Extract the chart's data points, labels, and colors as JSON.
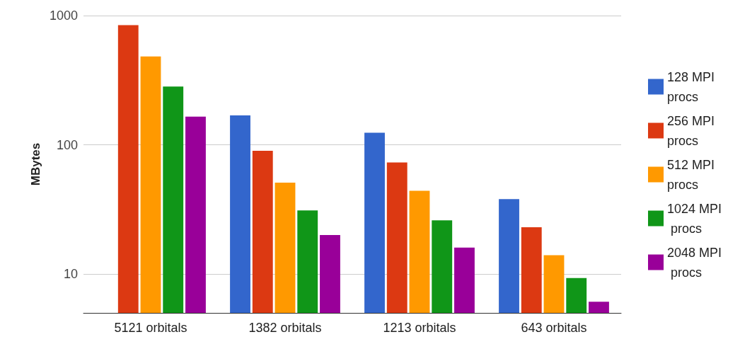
{
  "chart_data": {
    "type": "bar",
    "ylabel": "MBytes",
    "categories": [
      "5121 orbitals",
      "1382 orbitals",
      "1213 orbitals",
      "643 orbitals"
    ],
    "series": [
      {
        "name": "128 MPI procs",
        "color": "#3366cc",
        "values": [
          null,
          169,
          124,
          38
        ]
      },
      {
        "name": "256 MPI procs",
        "color": "#dc3912",
        "values": [
          844,
          90,
          73,
          23
        ]
      },
      {
        "name": "512 MPI procs",
        "color": "#ff9900",
        "values": [
          482,
          51,
          44,
          14
        ]
      },
      {
        "name": "1024 MPI procs",
        "color": "#109618",
        "values": [
          282,
          31,
          26,
          9.3
        ]
      },
      {
        "name": "2048 MPI procs",
        "color": "#990099",
        "values": [
          165,
          20,
          16,
          6.1
        ]
      }
    ],
    "log": true,
    "ylim": [
      5,
      1000
    ],
    "yticks": [
      10,
      100,
      1000
    ],
    "grid": true,
    "legend": "right"
  }
}
